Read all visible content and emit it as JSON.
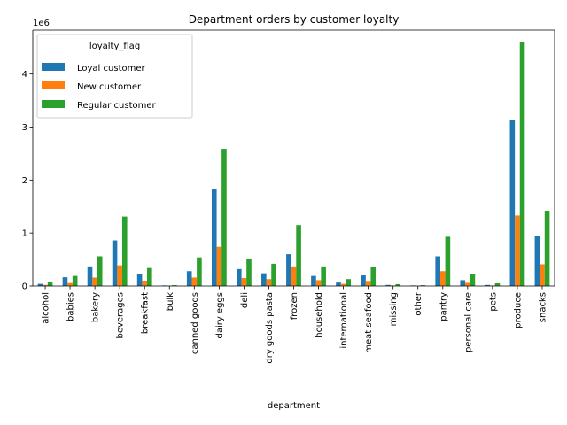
{
  "chart_data": {
    "type": "bar",
    "title": "Department orders by customer loyalty",
    "xlabel": "department",
    "ylabel": "",
    "y_multiplier_label": "1e6",
    "ylim": [
      0,
      4830000
    ],
    "yticks": [
      0,
      1000000,
      2000000,
      3000000,
      4000000
    ],
    "ytick_labels": [
      "0",
      "1",
      "2",
      "3",
      "4"
    ],
    "grid": false,
    "legend": {
      "title": "loyalty_flag",
      "placement": "top-left"
    },
    "categories": [
      "alcohol",
      "babies",
      "bakery",
      "beverages",
      "breakfast",
      "bulk",
      "canned goods",
      "dairy eggs",
      "deli",
      "dry goods pasta",
      "frozen",
      "household",
      "international",
      "meat seafood",
      "missing",
      "other",
      "pantry",
      "personal care",
      "pets",
      "produce",
      "snacks"
    ],
    "series": [
      {
        "name": "Loyal customer",
        "color": "#1f77b4",
        "values": [
          40000,
          165000,
          370000,
          860000,
          220000,
          10000,
          280000,
          1830000,
          320000,
          240000,
          600000,
          190000,
          65000,
          200000,
          20000,
          10000,
          560000,
          110000,
          20000,
          3140000,
          950000
        ]
      },
      {
        "name": "New customer",
        "color": "#ff7f0e",
        "values": [
          20000,
          55000,
          160000,
          390000,
          100000,
          5000,
          160000,
          740000,
          150000,
          130000,
          370000,
          110000,
          40000,
          95000,
          10000,
          5000,
          280000,
          60000,
          10000,
          1330000,
          410000
        ]
      },
      {
        "name": "Regular customer",
        "color": "#2ca02c",
        "values": [
          70000,
          190000,
          560000,
          1310000,
          340000,
          15000,
          540000,
          2590000,
          520000,
          420000,
          1150000,
          370000,
          130000,
          360000,
          35000,
          15000,
          930000,
          220000,
          50000,
          4600000,
          1420000
        ]
      }
    ]
  }
}
